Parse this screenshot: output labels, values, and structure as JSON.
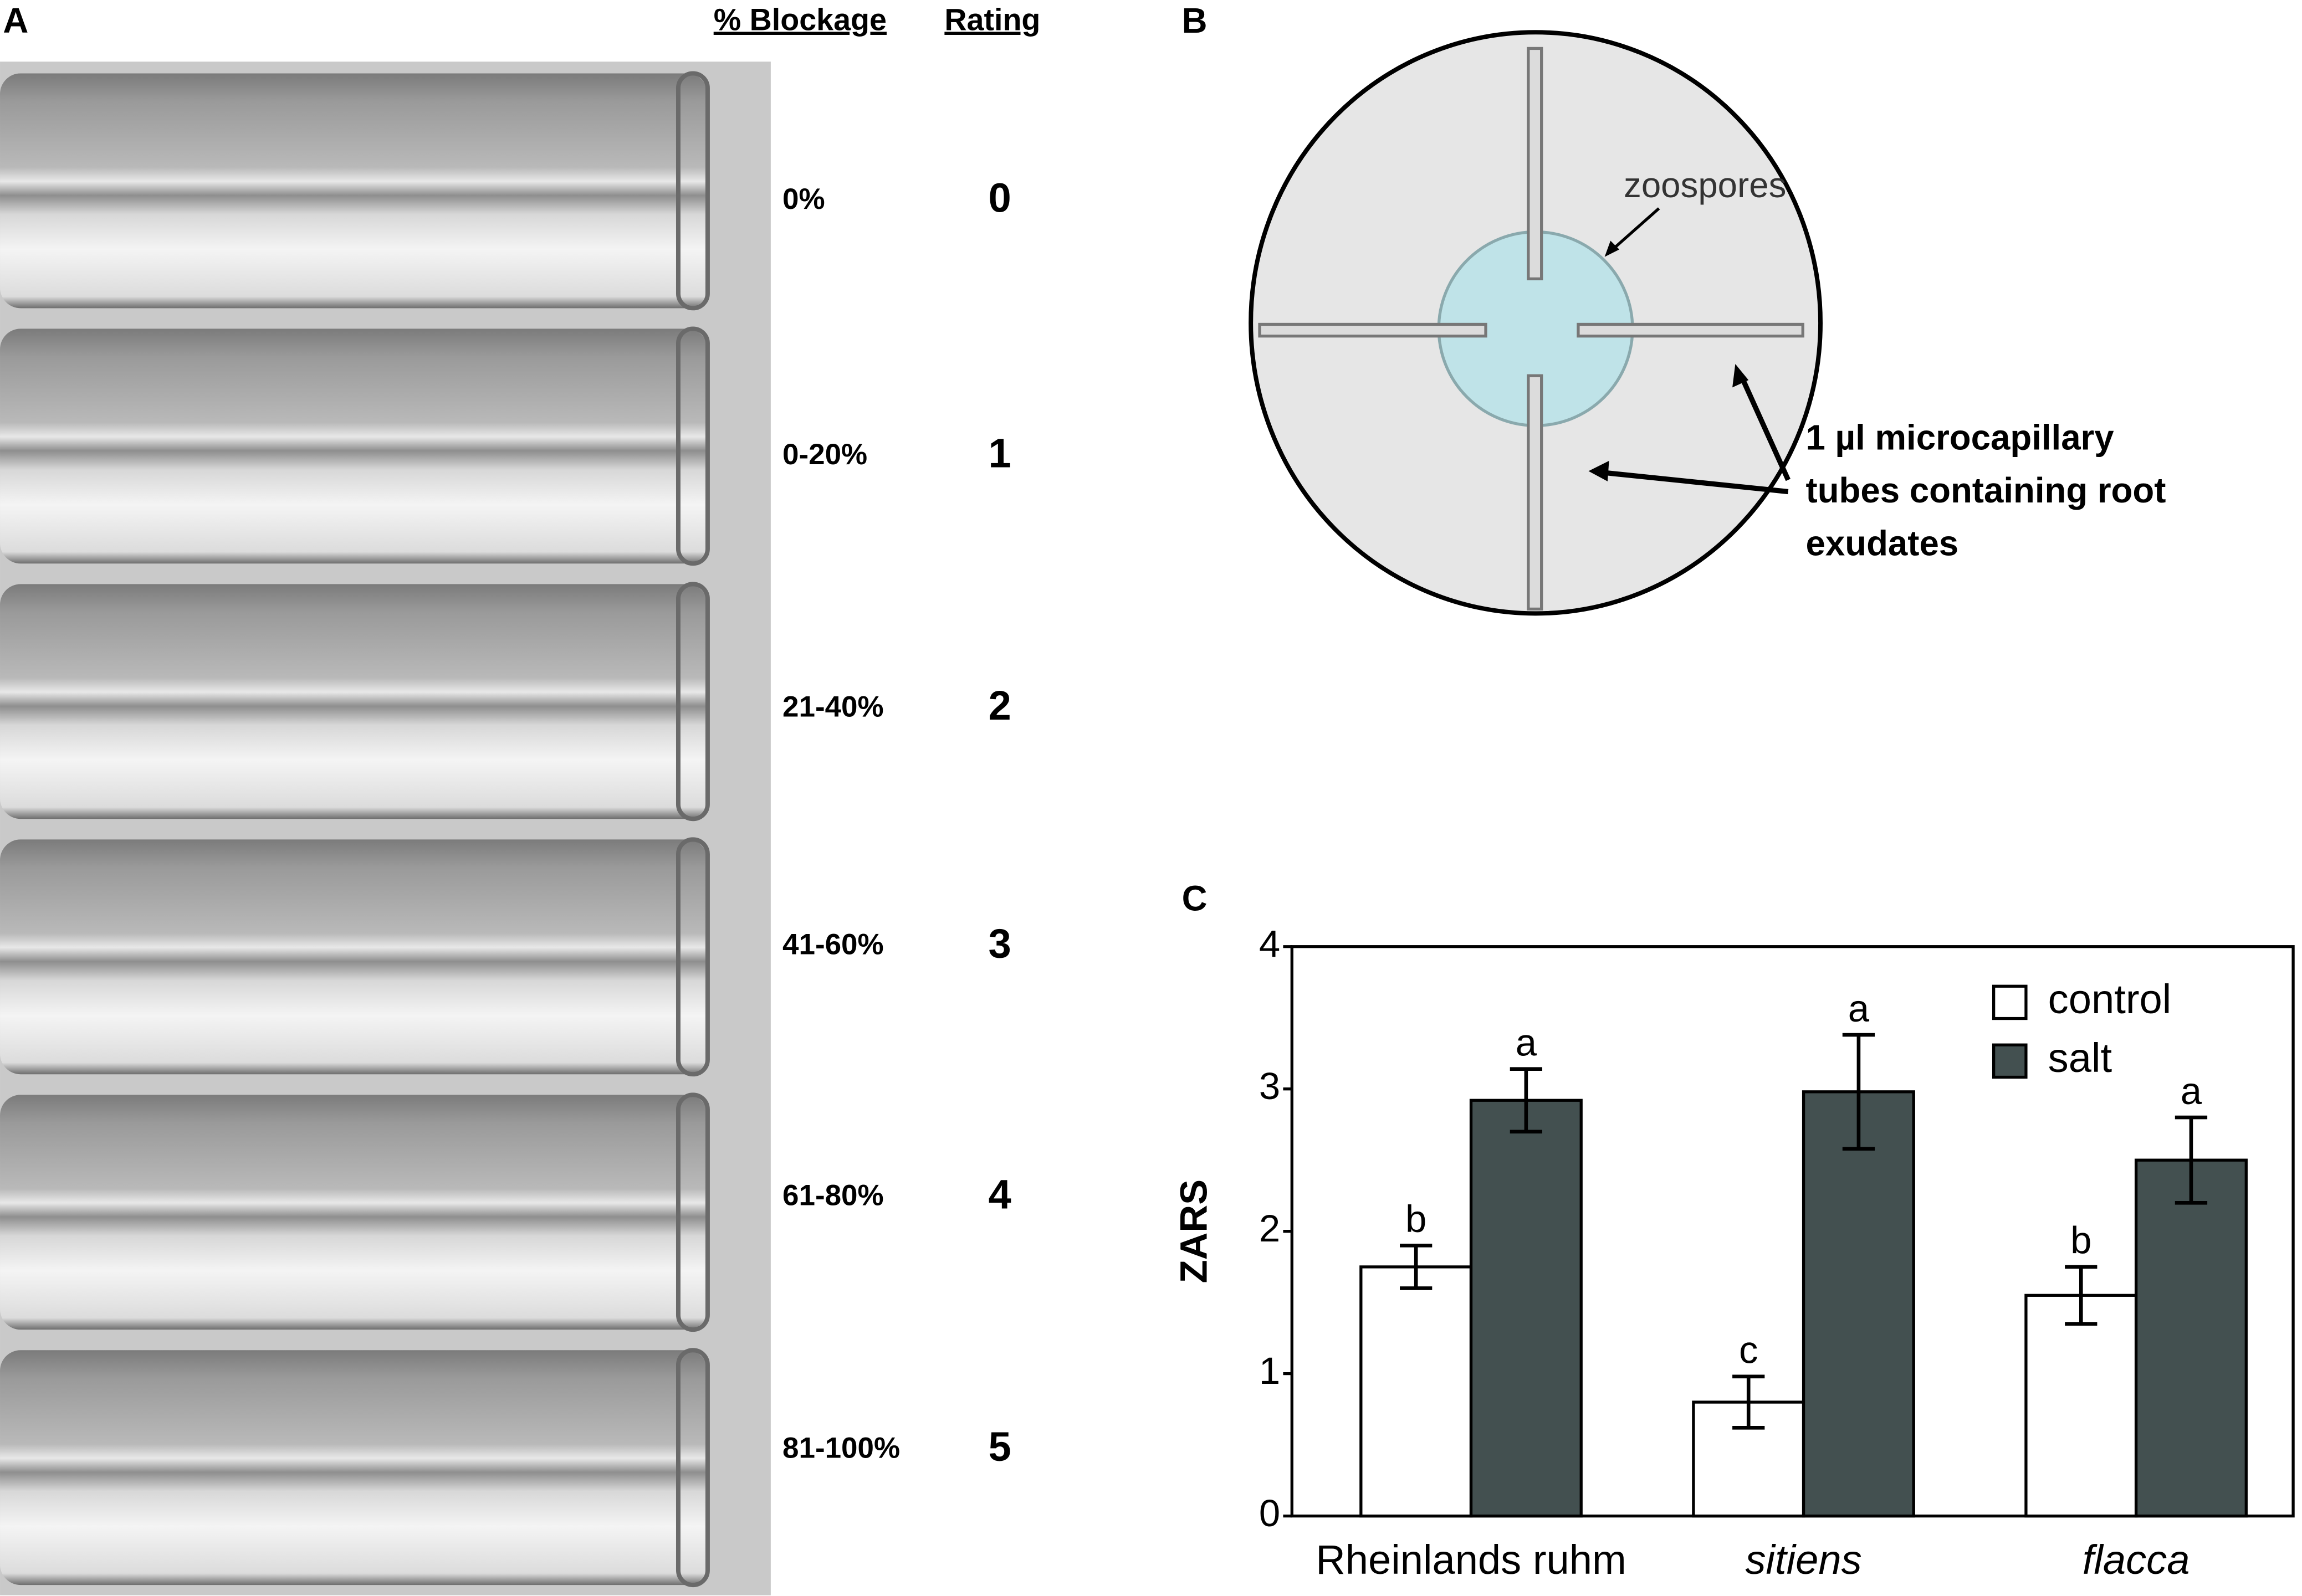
{
  "panel_a": {
    "label": "A",
    "headers": [
      "% Blockage",
      "Rating"
    ],
    "rows": [
      {
        "blockage": "0%",
        "rating": "0"
      },
      {
        "blockage": "0-20%",
        "rating": "1"
      },
      {
        "blockage": "21-40%",
        "rating": "2"
      },
      {
        "blockage": "41-60%",
        "rating": "3"
      },
      {
        "blockage": "61-80%",
        "rating": "4"
      },
      {
        "blockage": "81-100%",
        "rating": "5"
      }
    ]
  },
  "panel_b": {
    "label": "B",
    "zoospores": "zoospores",
    "tube_label_lines": [
      "1 µl microcapillary",
      "tubes containing root",
      "exudates"
    ]
  },
  "chart_data": {
    "type": "bar",
    "panel_label": "C",
    "ylabel": "ZARS",
    "categories": [
      "Rheinlands ruhm",
      "sitiens",
      "flacca"
    ],
    "italic_categories": [
      false,
      true,
      true
    ],
    "series": [
      {
        "name": "control",
        "color": "#ffffff",
        "values": [
          1.75,
          0.8,
          1.55
        ],
        "errors": [
          0.15,
          0.18,
          0.2
        ],
        "letters": [
          "b",
          "c",
          "b"
        ]
      },
      {
        "name": "salt",
        "color": "#435050",
        "values": [
          2.92,
          2.98,
          2.5
        ],
        "errors": [
          0.22,
          0.4,
          0.3
        ],
        "letters": [
          "a",
          "a",
          "a"
        ]
      }
    ],
    "ylim": [
      0,
      4
    ],
    "yticks": [
      0,
      1,
      2,
      3,
      4
    ],
    "legend": "upper right"
  }
}
